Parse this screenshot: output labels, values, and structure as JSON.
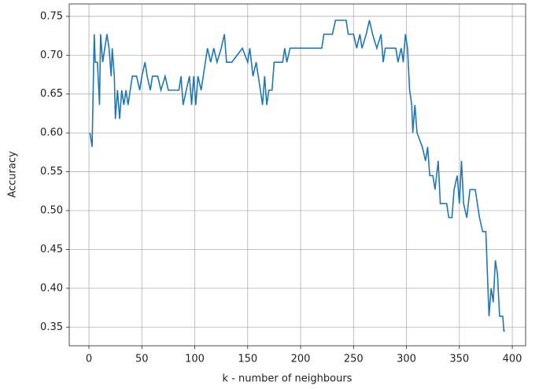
{
  "chart_data": {
    "type": "line",
    "xlabel": "k - number of neighbours",
    "ylabel": "Accuracy",
    "xlim": [
      -18.6,
      412.6
    ],
    "ylim": [
      0.326,
      0.766
    ],
    "xticks": [
      0,
      50,
      100,
      150,
      200,
      250,
      300,
      350,
      400
    ],
    "yticks": [
      0.35,
      {
        "value": 0.4,
        "label": "0.40"
      },
      0.45,
      {
        "value": 0.5,
        "label": "0.50"
      },
      0.55,
      {
        "value": 0.6,
        "label": "0.60"
      },
      0.65,
      {
        "value": 0.7,
        "label": "0.70"
      },
      0.75
    ],
    "grid": true,
    "series": [
      {
        "color": "#1f77b4",
        "x": [
          1,
          3,
          5,
          6,
          8,
          10,
          11,
          13,
          15,
          17,
          19,
          21,
          22,
          24,
          25,
          27,
          29,
          31,
          33,
          35,
          37,
          39,
          41,
          45,
          48,
          50,
          53,
          55,
          58,
          60,
          65,
          68,
          72,
          75,
          85,
          87,
          89,
          92,
          95,
          97,
          99,
          101,
          103,
          106,
          110,
          112,
          115,
          118,
          121,
          125,
          128,
          130,
          135,
          145,
          150,
          152,
          155,
          158,
          160,
          162,
          164,
          166,
          168,
          170,
          173,
          175,
          183,
          185,
          187,
          190,
          220,
          222,
          230,
          233,
          243,
          245,
          250,
          253,
          256,
          258,
          262,
          265,
          268,
          272,
          276,
          278,
          280,
          290,
          292,
          295,
          297,
          299,
          301,
          303,
          305,
          306,
          308,
          310,
          315,
          318,
          320,
          322,
          325,
          327,
          330,
          332,
          338,
          340,
          343,
          345,
          348,
          350,
          352,
          354,
          357,
          360,
          365,
          367,
          369,
          372,
          375,
          377,
          378,
          380,
          382,
          384,
          386,
          388,
          391,
          392,
          393
        ],
        "values": [
          0.6,
          0.582,
          0.727,
          0.691,
          0.691,
          0.636,
          0.727,
          0.691,
          0.709,
          0.727,
          0.709,
          0.673,
          0.709,
          0.673,
          0.618,
          0.655,
          0.618,
          0.655,
          0.636,
          0.655,
          0.636,
          0.655,
          0.673,
          0.673,
          0.655,
          0.673,
          0.691,
          0.673,
          0.655,
          0.673,
          0.673,
          0.655,
          0.673,
          0.655,
          0.655,
          0.673,
          0.636,
          0.655,
          0.673,
          0.636,
          0.673,
          0.636,
          0.673,
          0.655,
          0.691,
          0.709,
          0.691,
          0.709,
          0.691,
          0.709,
          0.727,
          0.691,
          0.691,
          0.709,
          0.691,
          0.709,
          0.673,
          0.691,
          0.673,
          0.655,
          0.636,
          0.673,
          0.636,
          0.655,
          0.655,
          0.691,
          0.691,
          0.709,
          0.691,
          0.709,
          0.709,
          0.727,
          0.727,
          0.745,
          0.745,
          0.727,
          0.727,
          0.709,
          0.727,
          0.709,
          0.727,
          0.745,
          0.727,
          0.709,
          0.727,
          0.691,
          0.709,
          0.709,
          0.691,
          0.709,
          0.691,
          0.727,
          0.709,
          0.655,
          0.636,
          0.6,
          0.636,
          0.6,
          0.582,
          0.564,
          0.582,
          0.545,
          0.545,
          0.527,
          0.564,
          0.509,
          0.509,
          0.491,
          0.491,
          0.527,
          0.545,
          0.509,
          0.564,
          0.509,
          0.491,
          0.527,
          0.527,
          0.509,
          0.491,
          0.473,
          0.473,
          0.4,
          0.364,
          0.4,
          0.382,
          0.436,
          0.418,
          0.364,
          0.364,
          0.345,
          0.345
        ]
      }
    ]
  }
}
